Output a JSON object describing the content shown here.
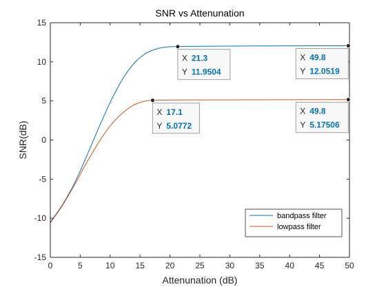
{
  "chart_data": {
    "type": "line",
    "title": "SNR vs Attenunation",
    "xlabel": "Attenunation (dB)",
    "ylabel": "SNR(dB)",
    "xlim": [
      0,
      50
    ],
    "ylim": [
      -15,
      15
    ],
    "xticks": [
      0,
      5,
      10,
      15,
      20,
      25,
      30,
      35,
      40,
      45,
      50
    ],
    "yticks": [
      -15,
      -10,
      -5,
      0,
      5,
      10,
      15
    ],
    "grid": false,
    "legend_position": "bottom-right",
    "series": [
      {
        "name": "bandpass filter",
        "color": "#0072BD",
        "x": [
          0,
          2,
          4,
          6,
          8,
          10,
          12,
          14,
          16,
          18,
          20,
          21.3,
          25,
          30,
          35,
          40,
          45,
          49.8,
          50
        ],
        "y": [
          -10.5,
          -8.3,
          -5.6,
          -2.2,
          1.4,
          4.8,
          7.7,
          9.8,
          11.1,
          11.7,
          11.93,
          11.9504,
          11.99,
          12.01,
          12.03,
          12.04,
          12.05,
          12.0519,
          12.05
        ]
      },
      {
        "name": "lowpass filter",
        "color": "#D95319",
        "x": [
          0,
          2,
          4,
          6,
          8,
          10,
          12,
          14,
          15,
          16,
          17.1,
          20,
          25,
          30,
          35,
          40,
          45,
          49.8,
          50
        ],
        "y": [
          -10.6,
          -8.4,
          -5.8,
          -3.0,
          -0.4,
          1.8,
          3.4,
          4.5,
          4.8,
          5.0,
          5.0772,
          5.11,
          5.13,
          5.14,
          5.15,
          5.16,
          5.17,
          5.17506,
          5.175
        ]
      }
    ],
    "datatips": [
      {
        "series": 0,
        "x_label": "X",
        "y_label": "Y",
        "x": 21.3,
        "y": 11.9504,
        "x_text": "21.3",
        "y_text": "11.9504"
      },
      {
        "series": 0,
        "x_label": "X",
        "y_label": "Y",
        "x": 49.8,
        "y": 12.0519,
        "x_text": "49.8",
        "y_text": "12.0519"
      },
      {
        "series": 1,
        "x_label": "X",
        "y_label": "Y",
        "x": 17.1,
        "y": 5.0772,
        "x_text": "17.1",
        "y_text": "5.0772"
      },
      {
        "series": 1,
        "x_label": "X",
        "y_label": "Y",
        "x": 49.8,
        "y": 5.17506,
        "x_text": "49.8",
        "y_text": "5.17506"
      }
    ]
  }
}
